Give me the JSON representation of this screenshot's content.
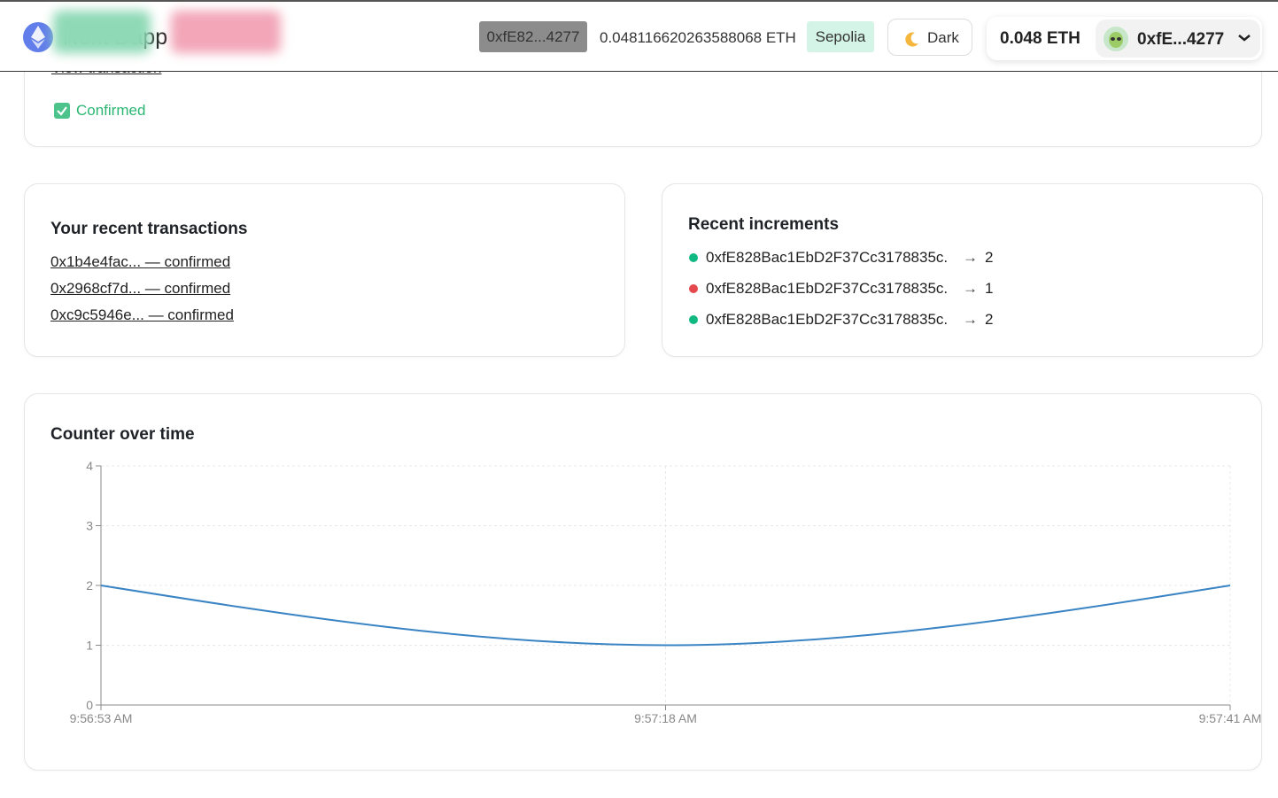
{
  "header": {
    "app_name": "Next Dapp",
    "address_badge": "0xfE82...4277",
    "balance": "0.048116620263588068 ETH",
    "network": "Sepolia",
    "theme_label": "Dark",
    "wallet_balance": "0.048 ETH",
    "wallet_address": "0xfE...4277"
  },
  "status_card": {
    "link": "View transaction",
    "status": "Confirmed"
  },
  "transactions": {
    "title": "Your recent transactions",
    "items": [
      "0x1b4e4fac... — confirmed",
      "0x2968cf7d... — confirmed",
      "0xc9c5946e... — confirmed"
    ]
  },
  "increments": {
    "title": "Recent increments",
    "arrow": "→",
    "items": [
      {
        "address": "0xfE828Bac1EbD2F37Cc3178835c...",
        "value": 2,
        "color": "#10b981"
      },
      {
        "address": "0xfE828Bac1EbD2F37Cc3178835c...",
        "value": 1,
        "color": "#e5484d"
      },
      {
        "address": "0xfE828Bac1EbD2F37Cc3178835c...",
        "value": 2,
        "color": "#10b981"
      }
    ]
  },
  "chart_data": {
    "type": "line",
    "title": "Counter over time",
    "categories": [
      "9:56:53 AM",
      "9:57:18 AM",
      "9:57:41 AM"
    ],
    "values": [
      2,
      1,
      2
    ],
    "color": "#3a84c4",
    "ylim": [
      0,
      4
    ],
    "yticks": [
      0,
      1,
      2,
      3,
      4
    ],
    "grid": true
  }
}
